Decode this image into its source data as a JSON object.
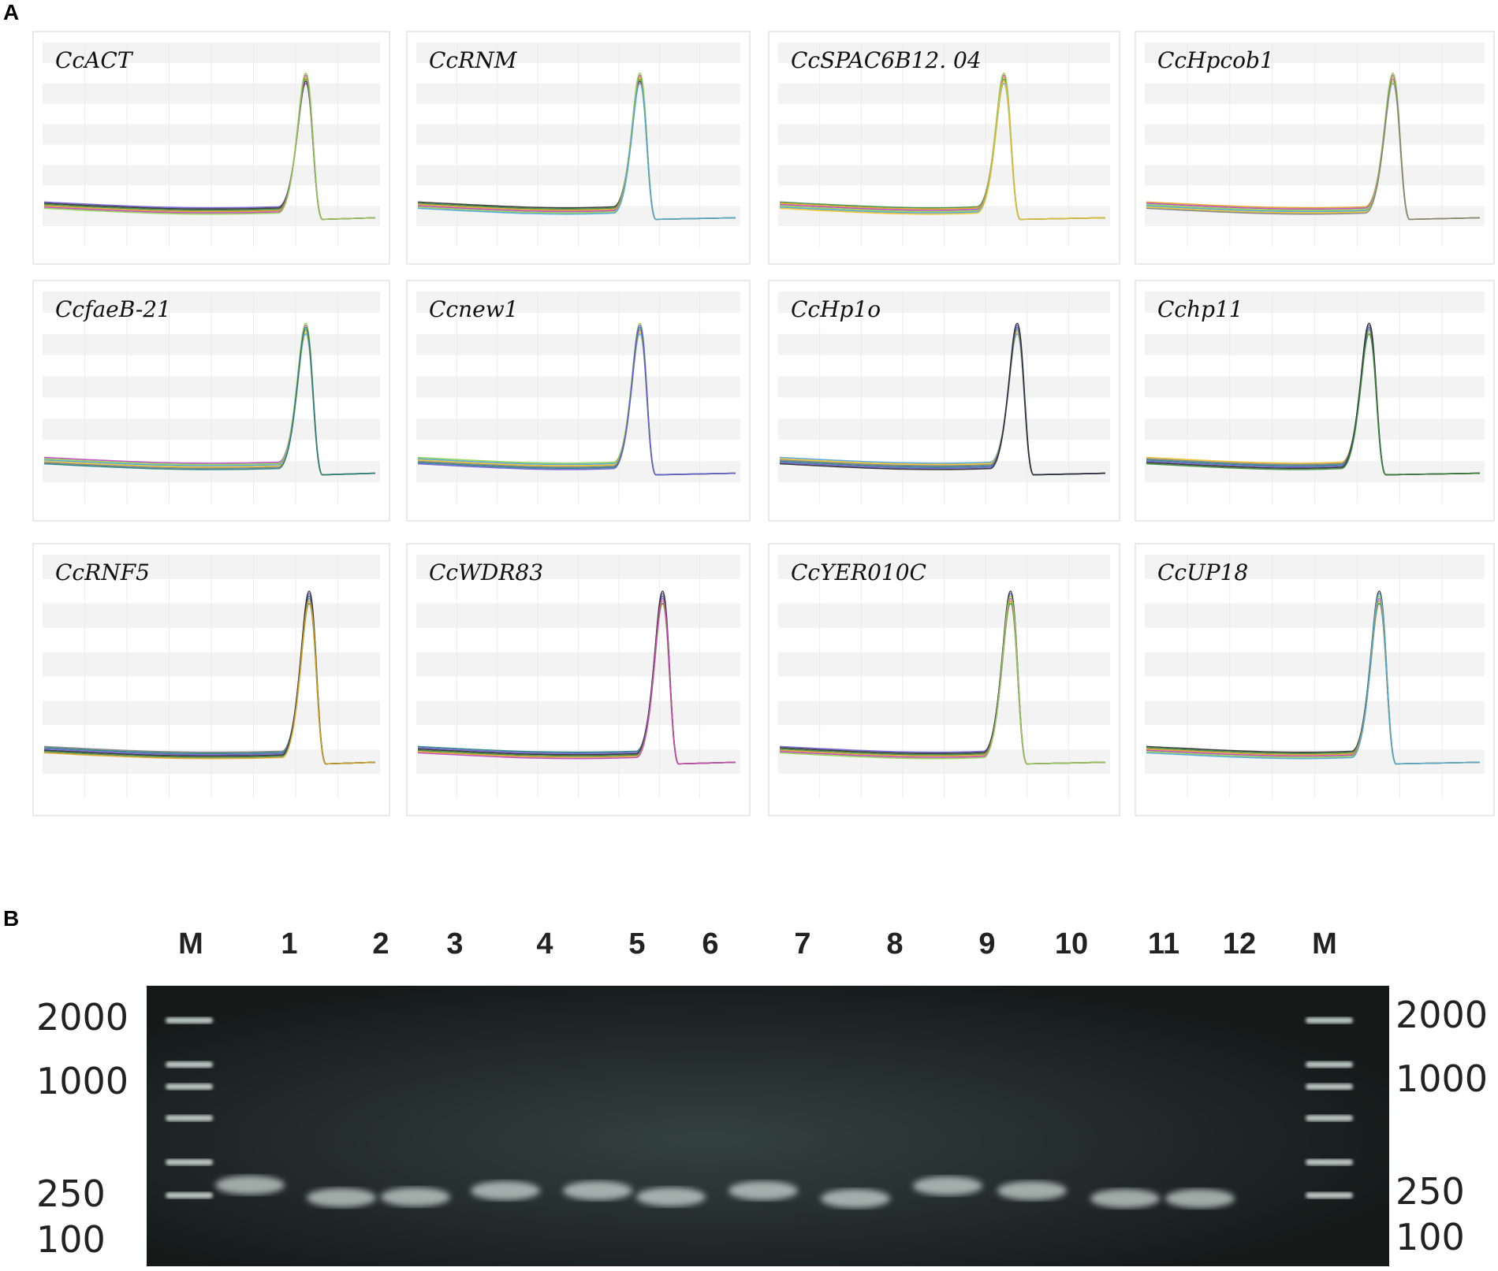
{
  "panels": {
    "a_label": "A",
    "b_label": "B"
  },
  "melt_curves": [
    {
      "gene": "CcACT"
    },
    {
      "gene": "CcRNM"
    },
    {
      "gene": "CcSPAC6B12. 04"
    },
    {
      "gene": "CcHpcob1"
    },
    {
      "gene": "CcfaeB-21"
    },
    {
      "gene": "Ccnew1"
    },
    {
      "gene": "CcHp1o"
    },
    {
      "gene": "Cchp11"
    },
    {
      "gene": "CcRNF5"
    },
    {
      "gene": "CcWDR83"
    },
    {
      "gene": "CcYER010C"
    },
    {
      "gene": "CcUP18"
    }
  ],
  "gel": {
    "lanes": [
      "M",
      "1",
      "2",
      "3",
      "4",
      "5",
      "6",
      "7",
      "8",
      "9",
      "10",
      "11",
      "12",
      "M"
    ],
    "markers_left": [
      "2000",
      "1000",
      "250",
      "100"
    ],
    "markers_right": [
      "2000",
      "1000",
      "250",
      "100"
    ],
    "colors": {
      "gel_dark": "#1d2322",
      "band": "#d8e4e0"
    }
  }
}
